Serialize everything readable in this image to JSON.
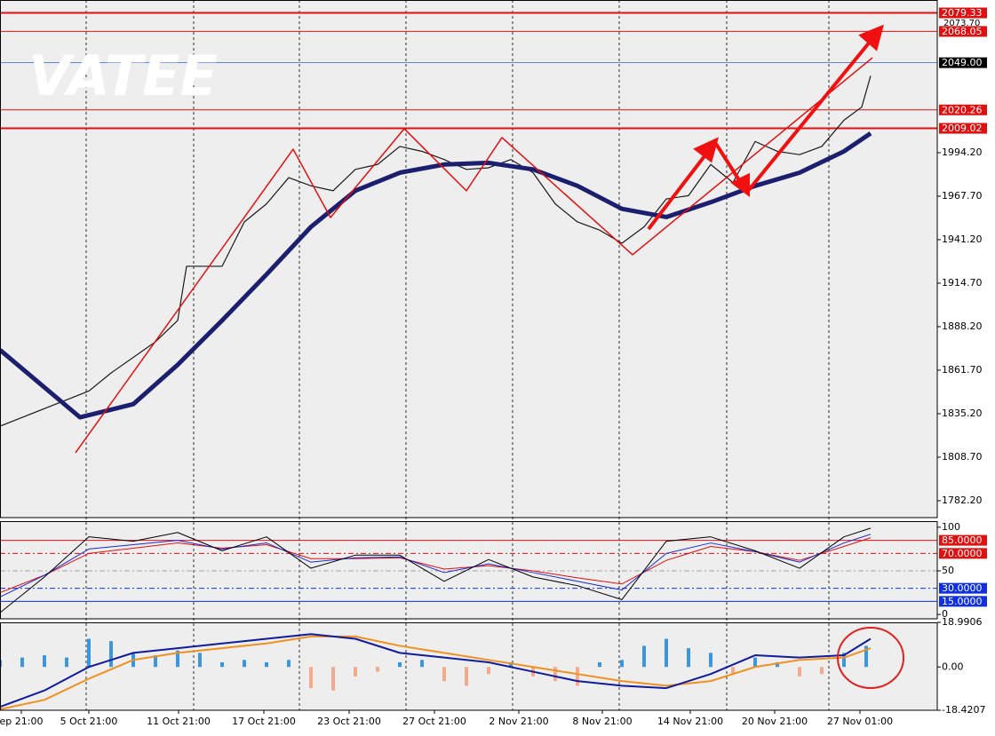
{
  "chart_data": [
    {
      "type": "line",
      "watermark": "VATEE",
      "note_label": "2073.70",
      "xlim": [
        0,
        211
      ],
      "ylim": [
        1771.9,
        2087.2
      ],
      "yticks": [
        {
          "value": 1782.2,
          "label": "1782.20"
        },
        {
          "value": 1808.7,
          "label": "1808.70"
        },
        {
          "value": 1835.2,
          "label": "1835.20"
        },
        {
          "value": 1861.7,
          "label": "1861.70"
        },
        {
          "value": 1888.2,
          "label": "1888.20"
        },
        {
          "value": 1914.7,
          "label": "1914.70"
        },
        {
          "value": 1941.2,
          "label": "1941.20"
        },
        {
          "value": 1967.7,
          "label": "1967.70"
        },
        {
          "value": 1994.2,
          "label": "1994.20"
        }
      ],
      "vlines": [
        19.4,
        43.6,
        67.4,
        91.4,
        115.4,
        139.4,
        163.6,
        186.6
      ],
      "levels": [
        {
          "value": 2079.33,
          "label": "2079.33",
          "color": "#e01010",
          "box": "#e01010",
          "width": 2
        },
        {
          "value": 2068.05,
          "label": "2068.05",
          "color": "#e01010",
          "box": "#e01010",
          "width": 1
        },
        {
          "value": 2049,
          "label": "2049.00",
          "color": "#3060e0",
          "box": "#000000",
          "width": 0.7
        },
        {
          "value": 2020.26,
          "label": "2020.26",
          "color": "#e01010",
          "box": "#e01010",
          "width": 1
        },
        {
          "value": 2009.02,
          "label": "2009.02",
          "color": "#e01010",
          "box": "#e01010",
          "width": 2
        }
      ],
      "series": [
        {
          "color": "#1a1a1a",
          "width": 1.2,
          "x": [
            0,
            20,
            25,
            35,
            40,
            42,
            50,
            55,
            60,
            65,
            70,
            75,
            80,
            85,
            90,
            95,
            100,
            105,
            110,
            115,
            120,
            125,
            130,
            135,
            140,
            145,
            150,
            155,
            160,
            165,
            170,
            175,
            180,
            185,
            190,
            194,
            196
          ],
          "values": [
            1827.6,
            1849,
            1860,
            1879,
            1892,
            1925,
            1925,
            1952,
            1963,
            1979,
            1974,
            1971,
            1984,
            1987,
            1998,
            1995,
            1990,
            1984,
            1985,
            1990,
            1982,
            1963,
            1952,
            1947,
            1939,
            1949,
            1966,
            1968,
            1987,
            1976,
            2001,
            1995,
            1993,
            1998,
            2014,
            2022,
            2041
          ]
        },
        {
          "color": "#1c1f6e",
          "width": 5,
          "x": [
            0,
            18,
            30,
            40,
            50,
            60,
            70,
            80,
            90,
            100,
            110,
            120,
            130,
            140,
            150,
            160,
            170,
            180,
            190,
            196
          ],
          "values": [
            1874,
            1833,
            1841,
            1865,
            1892,
            1920,
            1949,
            1971,
            1982,
            1987,
            1988,
            1984,
            1974,
            1960,
            1955,
            1964,
            1974,
            1982,
            1995,
            2006
          ]
        },
        {
          "color": "#e01010",
          "width": 1.5,
          "x": [
            17,
            66,
            74.4,
            91,
            105,
            113,
            142.4,
            196.4
          ],
          "values": [
            1811.4,
            1996.3,
            1954.7,
            2008.8,
            1971,
            2003.4,
            1932,
            2052
          ]
        }
      ]
    },
    {
      "type": "line",
      "xlim": [
        0,
        211
      ],
      "ylim": [
        -5,
        107
      ],
      "yticks": [
        0,
        50,
        100
      ],
      "levels": [
        {
          "value": 85,
          "label": "85.0000",
          "color": "#e01010",
          "box": "#e01010",
          "width": 1
        },
        {
          "value": 70,
          "label": "70.0000",
          "color": "#e01010",
          "box": "#e01010",
          "width": 1,
          "dash": true
        },
        {
          "value": 50,
          "color": "#888888",
          "width": 0.7,
          "dash": true
        },
        {
          "value": 30,
          "label": "30.0000",
          "color": "#1030e0",
          "box": "#1030e0",
          "width": 1,
          "dash": true
        },
        {
          "value": 15,
          "label": "15.0000",
          "color": "#1030e0",
          "box": "#1030e0",
          "width": 1
        }
      ],
      "series": [
        {
          "color": "#e01010",
          "width": 1,
          "x": [
            0,
            10,
            20,
            30,
            40,
            50,
            60,
            70,
            80,
            90,
            100,
            110,
            120,
            130,
            140,
            150,
            160,
            170,
            180,
            190,
            196
          ],
          "values": [
            25,
            45,
            70,
            76,
            82,
            76,
            80,
            64,
            64,
            65,
            52,
            56,
            50,
            42,
            35,
            62,
            78,
            72,
            62,
            78,
            88
          ]
        },
        {
          "color": "#1a2ad0",
          "width": 1,
          "x": [
            0,
            10,
            20,
            30,
            40,
            50,
            60,
            70,
            80,
            90,
            100,
            110,
            120,
            130,
            140,
            150,
            160,
            170,
            180,
            190,
            196
          ],
          "values": [
            20,
            45,
            75,
            80,
            85,
            75,
            82,
            60,
            65,
            66,
            48,
            58,
            48,
            38,
            28,
            70,
            82,
            72,
            60,
            82,
            92
          ]
        },
        {
          "color": "#000000",
          "width": 1,
          "x": [
            0,
            10,
            20,
            30,
            40,
            50,
            60,
            70,
            80,
            90,
            100,
            110,
            120,
            130,
            140,
            150,
            160,
            170,
            180,
            190,
            196
          ],
          "values": [
            2,
            43,
            89,
            84,
            94,
            73,
            89,
            53,
            68,
            68,
            38,
            63,
            43,
            33,
            17,
            84,
            89,
            73,
            53,
            89,
            99
          ]
        }
      ]
    },
    {
      "type": "bar",
      "xlim": [
        0,
        211
      ],
      "ylim": [
        -18.4207,
        18.9906
      ],
      "yticks": [
        -18.4207,
        {
          "value": 0,
          "label": "0.00"
        },
        18.9906
      ],
      "xticks": [
        {
          "value": 4.8,
          "label": "ep 21:00"
        },
        {
          "value": 20,
          "label": "5 Oct 21:00"
        },
        {
          "value": 40.2,
          "label": "11 Oct 21:00"
        },
        {
          "value": 59.4,
          "label": "17 Oct 21:00"
        },
        {
          "value": 78.6,
          "label": "23 Oct 21:00"
        },
        {
          "value": 97.8,
          "label": "27 Oct 21:00"
        },
        {
          "value": 116.8,
          "label": "2 Nov 21:00"
        },
        {
          "value": 135.6,
          "label": "8 Nov 21:00"
        },
        {
          "value": 155.4,
          "label": "14 Nov 21:00"
        },
        {
          "value": 174.4,
          "label": "20 Nov 21:00"
        },
        {
          "value": 193.6,
          "label": "27 Nov 01:00"
        }
      ],
      "bars": {
        "color": "#3a96dd",
        "neg_color": "#f4a98a",
        "x": [
          0,
          5,
          10,
          15,
          20,
          25,
          30,
          35,
          40,
          45,
          50,
          55,
          60,
          65,
          70,
          75,
          80,
          85,
          90,
          95,
          100,
          105,
          110,
          115,
          120,
          125,
          130,
          135,
          140,
          145,
          150,
          155,
          160,
          165,
          170,
          175,
          180,
          185,
          190,
          195
        ],
        "values": [
          3,
          4,
          5,
          4,
          12,
          11,
          6,
          5,
          7,
          6,
          2,
          3,
          2,
          3,
          -9,
          -10,
          -4,
          -2,
          2,
          3,
          -6,
          -8,
          -3,
          2,
          -4,
          -6,
          -8,
          2,
          3,
          9,
          12,
          8,
          6,
          -3,
          4,
          2,
          -4,
          -3,
          6,
          9
        ]
      },
      "series": [
        {
          "color": "#f09020",
          "width": 2,
          "x": [
            0,
            10,
            20,
            30,
            40,
            50,
            60,
            70,
            80,
            90,
            100,
            110,
            120,
            130,
            140,
            150,
            160,
            170,
            180,
            190,
            196
          ],
          "values": [
            -18,
            -14,
            -5,
            3,
            6,
            8,
            10,
            13,
            13,
            9,
            6,
            3,
            0,
            -3,
            -6,
            -8,
            -6,
            0,
            3,
            4,
            8
          ]
        },
        {
          "color": "#101c9c",
          "width": 2,
          "x": [
            0,
            10,
            20,
            30,
            40,
            50,
            60,
            70,
            80,
            90,
            100,
            110,
            120,
            130,
            140,
            150,
            160,
            170,
            180,
            190,
            196
          ],
          "values": [
            -17,
            -10,
            0,
            6,
            8,
            10,
            12,
            14,
            12,
            6,
            4,
            2,
            -2,
            -6,
            -8,
            -9,
            -3,
            5,
            4,
            5,
            12
          ]
        }
      ]
    }
  ]
}
